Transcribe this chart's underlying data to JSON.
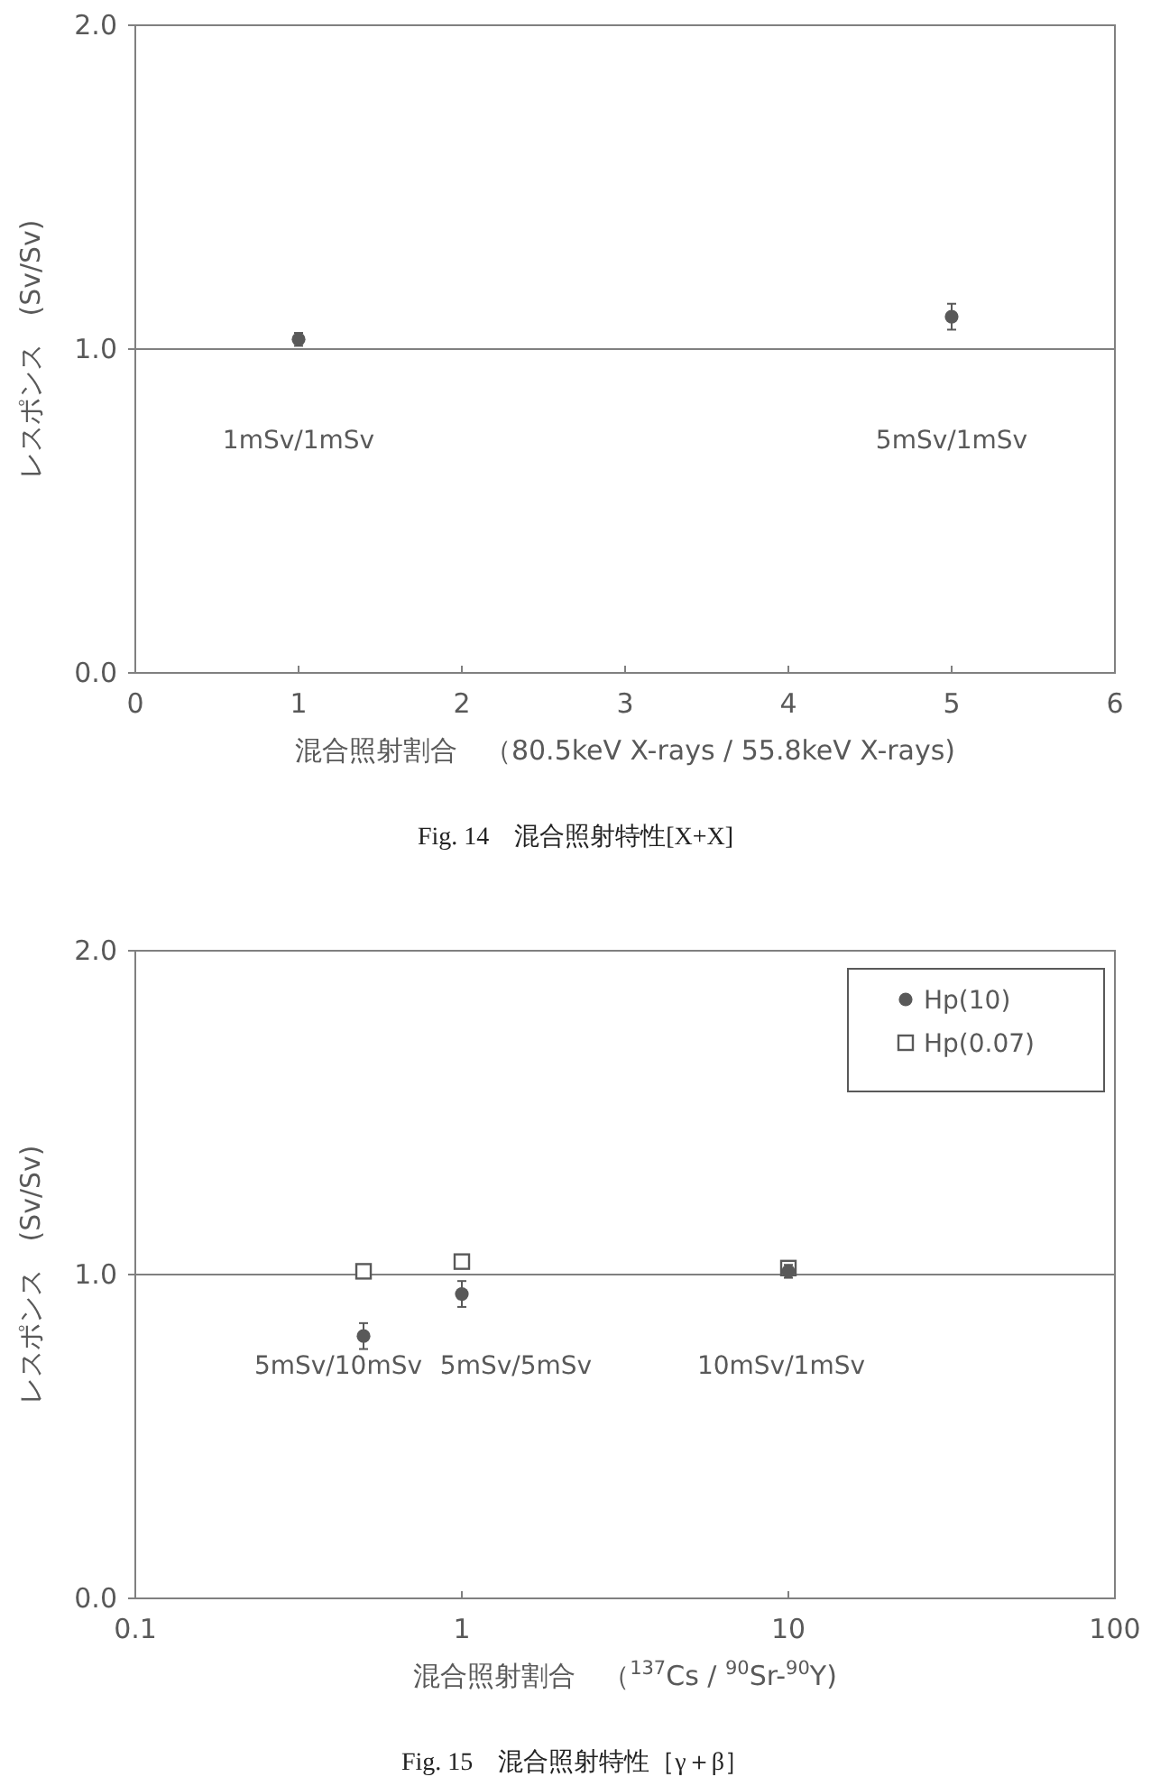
{
  "chart_data": [
    {
      "type": "scatter",
      "title": "Fig. 14　混合照射特性[X+X]",
      "xlabel": "混合照射割合　（80.5keV X-rays / 55.8keV X-rays)",
      "ylabel": "レスポンス　(Sv/Sv)",
      "xlim": [
        0,
        6
      ],
      "xticks": [
        0,
        1,
        2,
        3,
        4,
        5,
        6
      ],
      "ylim": [
        0,
        2
      ],
      "yticks": [
        {
          "value": 0,
          "label": "0.0"
        },
        {
          "value": 1,
          "label": "1.0"
        },
        {
          "value": 2,
          "label": "2.0"
        }
      ],
      "marker": "circle",
      "series": [
        {
          "color": "#595959",
          "x": [
            1,
            5
          ],
          "values": [
            1.03,
            1.1
          ],
          "errors": [
            0.02,
            0.04
          ]
        }
      ],
      "ref_lines": [
        {
          "axis": "y",
          "value": 1,
          "color": "#808080"
        }
      ],
      "annotations": [
        "1mSv/1mSv",
        "5mSv/1mSv"
      ]
    },
    {
      "type": "scatter",
      "title": "Fig. 15　混合照射特性［γ＋β］",
      "xlabel": "混合照射割合　（$^{137}$Cs / $^{90}$Sr-$^{90}$Y)",
      "ylabel": "レスポンス　(Sv/Sv)",
      "log": "x",
      "xlim": [
        0.1,
        100
      ],
      "xticks": [
        0.1,
        1,
        10,
        100
      ],
      "ylim": [
        0,
        2
      ],
      "yticks": [
        {
          "value": 0,
          "label": "0.0"
        },
        {
          "value": 1,
          "label": "1.0"
        },
        {
          "value": 2,
          "label": "2.0"
        }
      ],
      "legend": "top right",
      "series": [
        {
          "name": "Hp(10)",
          "color": "#595959",
          "marker": "circle",
          "x": [
            0.5,
            1,
            10
          ],
          "values": [
            0.81,
            0.94,
            1.01
          ],
          "errors": [
            0.04,
            0.04,
            0.02
          ]
        },
        {
          "name": "Hp(0.07)",
          "color": "#595959",
          "marker": "square",
          "x": [
            0.5,
            1,
            10
          ],
          "values": [
            1.01,
            1.04,
            1.02
          ],
          "errors": [
            0.01,
            0.01,
            0.01
          ]
        }
      ],
      "ref_lines": [
        {
          "axis": "y",
          "value": 1,
          "color": "#808080"
        }
      ],
      "annotations": [
        "5mSv/10mSv",
        "5mSv/5mSv",
        "10mSv/1mSv"
      ]
    }
  ]
}
